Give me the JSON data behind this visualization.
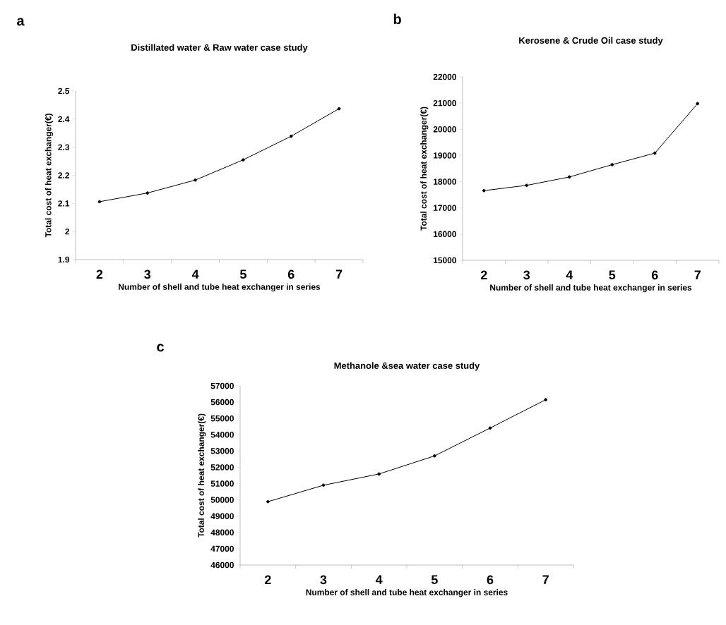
{
  "chart_data": [
    {
      "type": "line",
      "title": "Distillated water & Raw water case study",
      "xlabel": "Number of shell and tube heat exchanger in series",
      "ylabel": "Total cost of heat exchanger(€)",
      "annotations": [
        "a"
      ],
      "categories": [
        "2",
        "3",
        "4",
        "5",
        "6",
        "7"
      ],
      "values": [
        2.106,
        2.137,
        2.183,
        2.255,
        2.339,
        2.437
      ],
      "color": "#000000",
      "marker": "circle",
      "ylim": [
        1.9,
        2.5
      ],
      "yticks": [
        1.9,
        2,
        2.1,
        2.2,
        2.3,
        2.4,
        2.5
      ]
    },
    {
      "type": "line",
      "title": "Kerosene & Crude Oil case study",
      "xlabel": "Number of shell and tube heat exchanger in series",
      "ylabel": "Total cost of heat exchanger(€)",
      "annotations": [
        "b"
      ],
      "categories": [
        "2",
        "3",
        "4",
        "5",
        "6",
        "7"
      ],
      "values": [
        17660,
        17860,
        18180,
        18650,
        19090,
        20980
      ],
      "color": "#000000",
      "marker": "circle",
      "ylim": [
        15000,
        22000
      ],
      "yticks": [
        15000,
        16000,
        17000,
        18000,
        19000,
        20000,
        21000,
        22000
      ]
    },
    {
      "type": "line",
      "title": "Methanole &sea water case study",
      "xlabel": "Number of shell and tube heat exchanger in series",
      "ylabel": "Total cost of heat exchanger(€)",
      "annotations": [
        "c"
      ],
      "categories": [
        "2",
        "3",
        "4",
        "5",
        "6",
        "7"
      ],
      "values": [
        49890,
        50900,
        51590,
        52700,
        54410,
        56150
      ],
      "color": "#000000",
      "marker": "circle",
      "ylim": [
        46000,
        57000
      ],
      "yticks": [
        46000,
        47000,
        48000,
        49000,
        50000,
        51000,
        52000,
        53000,
        54000,
        55000,
        56000,
        57000
      ]
    }
  ]
}
